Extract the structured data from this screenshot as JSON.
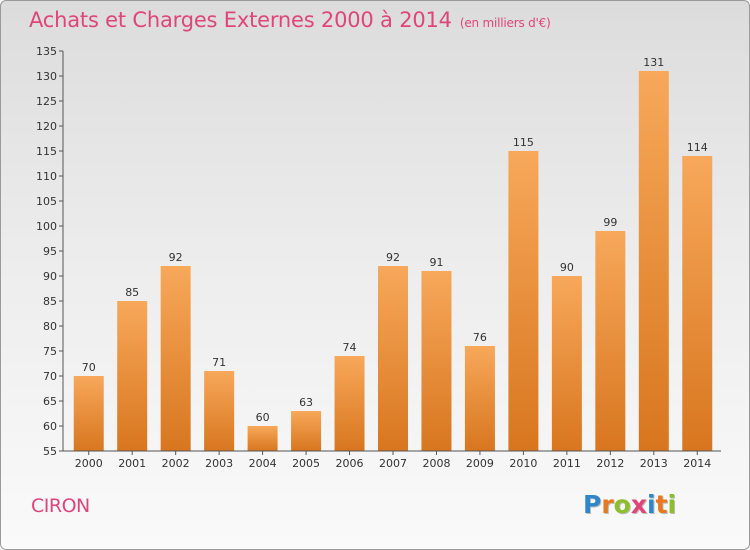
{
  "header": {
    "title": "Achats et Charges Externes 2000 à 2014",
    "subtitle": "(en milliers d'€)"
  },
  "commune": "CIRON",
  "logo": {
    "letters": [
      "P",
      "r",
      "o",
      "x",
      "i",
      "t",
      "i"
    ],
    "colors": [
      "#2f86c8",
      "#e8781e",
      "#8bbf2b",
      "#e0457a",
      "#2f86c8",
      "#e8781e",
      "#8bbf2b"
    ]
  },
  "colors": {
    "bar_light": "#f7a85a",
    "bar_dark": "#d8761f",
    "title": "#e0457a"
  },
  "chart_data": {
    "type": "bar",
    "title": "Achats et Charges Externes 2000 à 2014",
    "subtitle": "(en milliers d'€)",
    "xlabel": "",
    "ylabel": "",
    "categories": [
      "2000",
      "2001",
      "2002",
      "2003",
      "2004",
      "2005",
      "2006",
      "2007",
      "2008",
      "2009",
      "2010",
      "2011",
      "2012",
      "2013",
      "2014"
    ],
    "values": [
      70,
      85,
      92,
      71,
      60,
      63,
      74,
      92,
      91,
      76,
      115,
      90,
      99,
      131,
      114
    ],
    "value_labels": [
      "70",
      "85",
      "92",
      "71",
      "60",
      "63",
      "74",
      "92",
      "91",
      "76",
      "115",
      "90",
      "99",
      "131",
      "114"
    ],
    "ylim": [
      55,
      135
    ],
    "yticks": [
      "55",
      "60",
      "65",
      "70",
      "75",
      "80",
      "85",
      "90",
      "95",
      "100",
      "105",
      "110",
      "115",
      "120",
      "125",
      "130",
      "135"
    ],
    "grid": false,
    "legend": "none"
  }
}
